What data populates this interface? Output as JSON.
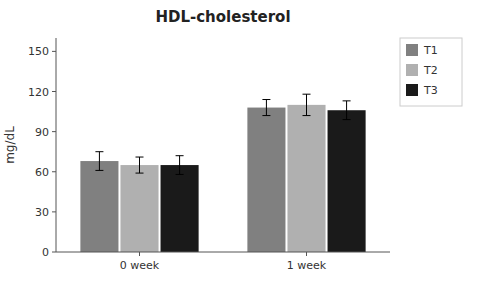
{
  "chart_data": {
    "type": "bar",
    "title": "HDL-cholesterol",
    "ylabel": "mg/dL",
    "categories": [
      "0 week",
      "1 week"
    ],
    "series": [
      {
        "name": "T1",
        "color": "#808080",
        "values": [
          68,
          108
        ],
        "errors": [
          7,
          6
        ]
      },
      {
        "name": "T2",
        "color": "#b0b0b0",
        "values": [
          65,
          110
        ],
        "errors": [
          6,
          8
        ]
      },
      {
        "name": "T3",
        "color": "#1a1a1a",
        "values": [
          65,
          106
        ],
        "errors": [
          7,
          7
        ]
      }
    ],
    "ylim": [
      0,
      160
    ],
    "yticks": [
      0,
      30,
      60,
      90,
      120,
      150
    ],
    "legend": "right",
    "grid": false
  }
}
